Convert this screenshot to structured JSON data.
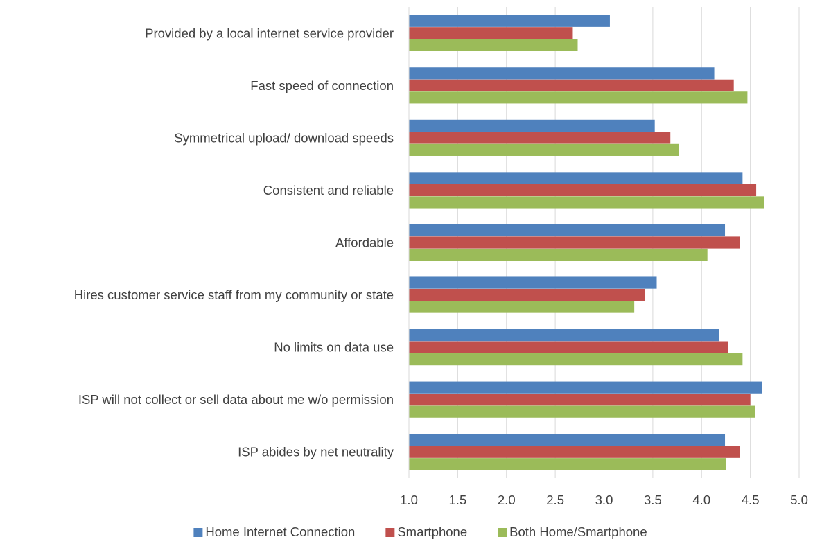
{
  "chart_data": {
    "type": "bar",
    "orientation": "horizontal",
    "categories": [
      "Provided by a local internet service provider",
      "Fast speed of connection",
      "Symmetrical upload/ download speeds",
      "Consistent and reliable",
      "Affordable",
      "Hires customer service staff from my community or state",
      "No limits on data use",
      "ISP will not collect or sell data about me w/o permission",
      "ISP abides by net neutrality"
    ],
    "series": [
      {
        "name": "Home Internet Connection",
        "color": "#4f81bd",
        "values": [
          3.06,
          4.13,
          3.52,
          4.42,
          4.24,
          3.54,
          4.18,
          4.62,
          4.24
        ]
      },
      {
        "name": "Smartphone",
        "color": "#c0504d",
        "values": [
          2.68,
          4.33,
          3.68,
          4.56,
          4.39,
          3.42,
          4.27,
          4.5,
          4.39
        ]
      },
      {
        "name": "Both Home/Smartphone",
        "color": "#9bbb59",
        "values": [
          2.73,
          4.47,
          3.77,
          4.64,
          4.06,
          3.31,
          4.42,
          4.55,
          4.25
        ]
      }
    ],
    "xlim": [
      1.0,
      5.0
    ],
    "x_ticks": [
      "1.0",
      "1.5",
      "2.0",
      "2.5",
      "3.0",
      "3.5",
      "4.0",
      "4.5",
      "5.0"
    ],
    "title": "",
    "xlabel": "",
    "ylabel": "",
    "grid": "vertical",
    "legend_position": "bottom"
  }
}
